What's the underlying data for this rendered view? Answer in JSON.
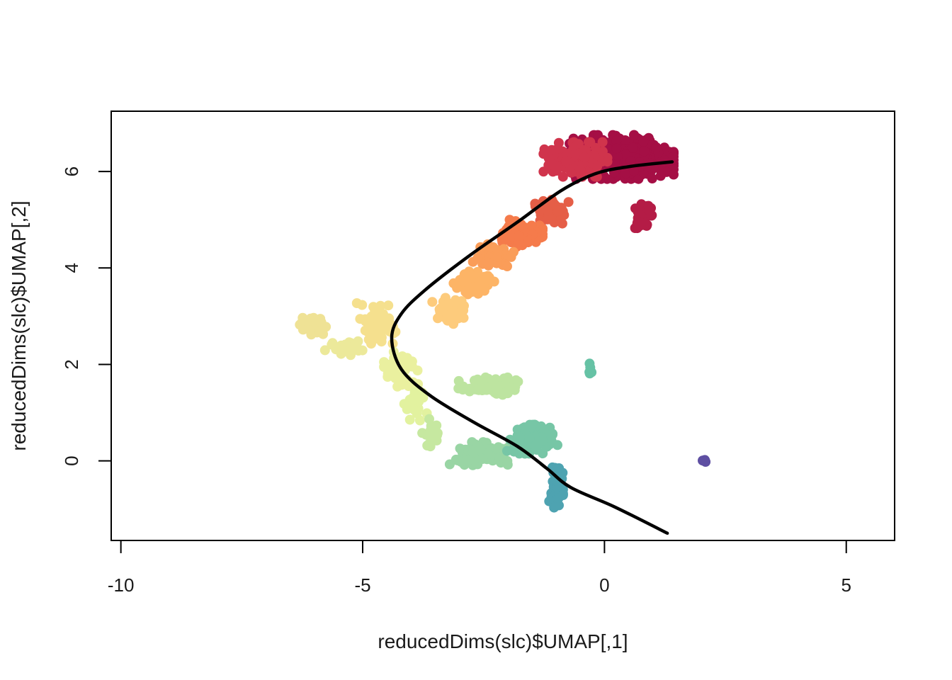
{
  "chart_data": {
    "type": "scatter",
    "title": "",
    "xlabel": "reducedDims(slc)$UMAP[,1]",
    "ylabel": "reducedDims(slc)$UMAP[,2]",
    "xlim": [
      -10.2,
      6.0
    ],
    "ylim": [
      -1.65,
      7.25
    ],
    "x_ticks": [
      -10,
      -5,
      0,
      5
    ],
    "y_ticks": [
      0,
      2,
      4,
      6
    ],
    "x_tick_labels": [
      "-10",
      "-5",
      "0",
      "5"
    ],
    "y_tick_labels": [
      "0",
      "2",
      "4",
      "6"
    ],
    "grid": false,
    "legend": "none",
    "colormap": "Spectral",
    "point_groups": [
      {
        "center": [
          0.35,
          6.3
        ],
        "spread": [
          0.9,
          0.38
        ],
        "n": 420,
        "color": "#a50f45"
      },
      {
        "center": [
          -0.6,
          6.25
        ],
        "spread": [
          0.55,
          0.3
        ],
        "n": 160,
        "color": "#d0344c"
      },
      {
        "center": [
          0.8,
          5.1
        ],
        "spread": [
          0.15,
          0.25
        ],
        "n": 50,
        "color": "#b41c46"
      },
      {
        "center": [
          -1.1,
          5.15
        ],
        "spread": [
          0.35,
          0.22
        ],
        "n": 70,
        "color": "#e55e47"
      },
      {
        "center": [
          -1.7,
          4.7
        ],
        "spread": [
          0.35,
          0.25
        ],
        "n": 80,
        "color": "#f57b4b"
      },
      {
        "center": [
          -2.3,
          4.25
        ],
        "spread": [
          0.35,
          0.2
        ],
        "n": 60,
        "color": "#fa9d59"
      },
      {
        "center": [
          -2.7,
          3.7
        ],
        "spread": [
          0.35,
          0.25
        ],
        "n": 55,
        "color": "#fdb466"
      },
      {
        "center": [
          -3.2,
          3.1
        ],
        "spread": [
          0.3,
          0.25
        ],
        "n": 50,
        "color": "#fdcb7c"
      },
      {
        "center": [
          -4.7,
          2.85
        ],
        "spread": [
          0.35,
          0.35
        ],
        "n": 60,
        "color": "#f5e08e"
      },
      {
        "center": [
          -6.0,
          2.8
        ],
        "spread": [
          0.25,
          0.15
        ],
        "n": 40,
        "color": "#efe295"
      },
      {
        "center": [
          -5.3,
          2.3
        ],
        "spread": [
          0.4,
          0.15
        ],
        "n": 25,
        "color": "#ece99a"
      },
      {
        "center": [
          -4.2,
          1.9
        ],
        "spread": [
          0.3,
          0.3
        ],
        "n": 50,
        "color": "#eaf09f"
      },
      {
        "center": [
          -3.9,
          1.2
        ],
        "spread": [
          0.2,
          0.3
        ],
        "n": 25,
        "color": "#e2f29f"
      },
      {
        "center": [
          -2.3,
          1.55
        ],
        "spread": [
          0.6,
          0.15
        ],
        "n": 70,
        "color": "#bde4a0"
      },
      {
        "center": [
          -3.6,
          0.6
        ],
        "spread": [
          0.15,
          0.25
        ],
        "n": 25,
        "color": "#c6e8a0"
      },
      {
        "center": [
          -2.6,
          0.15
        ],
        "spread": [
          0.5,
          0.2
        ],
        "n": 100,
        "color": "#99d5a4"
      },
      {
        "center": [
          -1.5,
          0.45
        ],
        "spread": [
          0.45,
          0.25
        ],
        "n": 110,
        "color": "#77c6a6"
      },
      {
        "center": [
          -1.0,
          -0.5
        ],
        "spread": [
          0.12,
          0.45
        ],
        "n": 40,
        "color": "#4ea3b1"
      },
      {
        "center": [
          -0.3,
          1.9
        ],
        "spread": [
          0.06,
          0.3
        ],
        "n": 5,
        "color": "#66c2a5"
      },
      {
        "center": [
          2.05,
          0.02
        ],
        "spread": [
          0.05,
          0.05
        ],
        "n": 4,
        "color": "#5e4fa2"
      }
    ],
    "points_note_removed": true,
    "curve": [
      [
        1.4,
        6.2
      ],
      [
        0.5,
        6.1
      ],
      [
        -0.2,
        5.95
      ],
      [
        -0.9,
        5.6
      ],
      [
        -1.8,
        4.95
      ],
      [
        -2.8,
        4.25
      ],
      [
        -3.7,
        3.55
      ],
      [
        -4.2,
        3.05
      ],
      [
        -4.4,
        2.55
      ],
      [
        -4.2,
        1.9
      ],
      [
        -3.6,
        1.35
      ],
      [
        -2.7,
        0.8
      ],
      [
        -1.8,
        0.3
      ],
      [
        -1.2,
        -0.15
      ],
      [
        -0.7,
        -0.55
      ],
      [
        0.2,
        -0.95
      ],
      [
        1.3,
        -1.5
      ]
    ]
  }
}
